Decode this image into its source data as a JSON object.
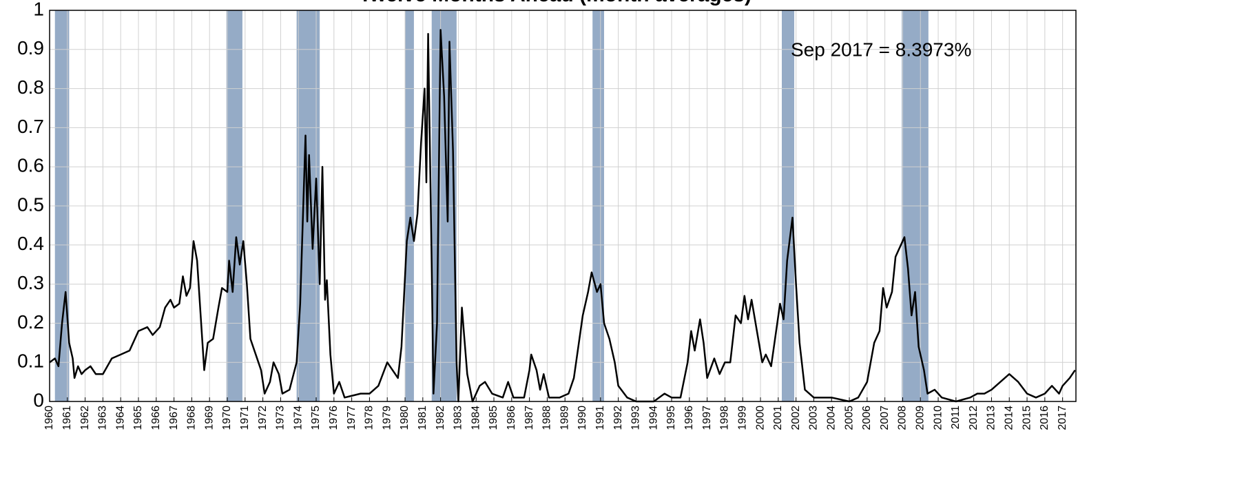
{
  "chart_data": {
    "type": "line",
    "title": "Twelve Months Ahead (month averages)",
    "annotation": "Sep 2017 = 8.3973%",
    "color": "#000000",
    "band_color": "#95abc6",
    "grid": true,
    "xlim": [
      1960,
      2017.75
    ],
    "ylim": [
      0,
      1
    ],
    "yticks": [
      0,
      0.1,
      0.2,
      0.3,
      0.4,
      0.5,
      0.6,
      0.7,
      0.8,
      0.9,
      1
    ],
    "xticks": [
      1960,
      1961,
      1962,
      1963,
      1964,
      1965,
      1966,
      1967,
      1968,
      1969,
      1970,
      1971,
      1972,
      1973,
      1974,
      1975,
      1976,
      1977,
      1978,
      1979,
      1980,
      1981,
      1982,
      1983,
      1984,
      1985,
      1986,
      1987,
      1988,
      1989,
      1990,
      1991,
      1992,
      1993,
      1994,
      1995,
      1996,
      1997,
      1998,
      1999,
      2000,
      2001,
      2002,
      2003,
      2004,
      2005,
      2006,
      2007,
      2008,
      2009,
      2010,
      2011,
      2012,
      2013,
      2014,
      2015,
      2016,
      2017
    ],
    "recessions": [
      [
        1960.3,
        1961.1
      ],
      [
        1969.95,
        1970.85
      ],
      [
        1973.9,
        1975.2
      ],
      [
        1980.0,
        1980.5
      ],
      [
        1981.5,
        1982.9
      ],
      [
        1990.55,
        1991.2
      ],
      [
        2001.2,
        2001.9
      ],
      [
        2007.95,
        2009.45
      ]
    ],
    "x": [
      1960.0,
      1960.3,
      1960.5,
      1960.7,
      1960.9,
      1961.1,
      1961.3,
      1961.4,
      1961.6,
      1961.8,
      1962.0,
      1962.3,
      1962.6,
      1963.0,
      1963.5,
      1964.0,
      1964.5,
      1965.0,
      1965.5,
      1965.8,
      1966.2,
      1966.5,
      1966.8,
      1967.0,
      1967.3,
      1967.5,
      1967.7,
      1967.9,
      1968.1,
      1968.3,
      1968.5,
      1968.7,
      1968.9,
      1969.2,
      1969.5,
      1969.7,
      1970.0,
      1970.1,
      1970.3,
      1970.5,
      1970.7,
      1970.9,
      1971.1,
      1971.3,
      1971.6,
      1971.9,
      1972.1,
      1972.4,
      1972.6,
      1972.9,
      1973.1,
      1973.5,
      1973.9,
      1974.1,
      1974.4,
      1974.5,
      1974.6,
      1974.8,
      1975.0,
      1975.2,
      1975.35,
      1975.5,
      1975.6,
      1975.8,
      1976.0,
      1976.3,
      1976.6,
      1977.5,
      1978.0,
      1978.5,
      1979.0,
      1979.3,
      1979.6,
      1979.8,
      1980.1,
      1980.3,
      1980.5,
      1980.7,
      1980.9,
      1981.1,
      1981.2,
      1981.3,
      1981.5,
      1981.6,
      1981.8,
      1982.0,
      1982.2,
      1982.4,
      1982.5,
      1982.7,
      1982.9,
      1983.0,
      1983.2,
      1983.5,
      1983.8,
      1984.2,
      1984.5,
      1984.9,
      1985.5,
      1985.8,
      1986.1,
      1986.7,
      1987.0,
      1987.1,
      1987.4,
      1987.6,
      1987.8,
      1988.1,
      1988.7,
      1989.2,
      1989.5,
      1990.0,
      1990.3,
      1990.5,
      1990.8,
      1991.0,
      1991.2,
      1991.5,
      1991.8,
      1992.0,
      1992.5,
      1993.0,
      1994.0,
      1994.6,
      1995.0,
      1995.5,
      1995.9,
      1996.1,
      1996.3,
      1996.6,
      1996.8,
      1997.0,
      1997.4,
      1997.7,
      1998.0,
      1998.3,
      1998.6,
      1998.9,
      1999.1,
      1999.3,
      1999.5,
      1999.8,
      2000.1,
      2000.3,
      2000.6,
      2001.1,
      2001.3,
      2001.5,
      2001.8,
      2002.0,
      2002.2,
      2002.5,
      2003.0,
      2003.5,
      2004.0,
      2005.0,
      2005.5,
      2006.0,
      2006.4,
      2006.7,
      2006.9,
      2007.1,
      2007.4,
      2007.6,
      2007.9,
      2008.1,
      2008.3,
      2008.5,
      2008.7,
      2008.9,
      2009.2,
      2009.4,
      2009.8,
      2010.2,
      2011.0,
      2011.8,
      2012.2,
      2012.6,
      2013.0,
      2013.5,
      2014.0,
      2014.5,
      2015.0,
      2015.5,
      2016.0,
      2016.4,
      2016.8,
      2017.0,
      2017.4,
      2017.7
    ],
    "values": [
      0.1,
      0.11,
      0.09,
      0.2,
      0.28,
      0.15,
      0.11,
      0.06,
      0.09,
      0.07,
      0.08,
      0.09,
      0.07,
      0.07,
      0.11,
      0.12,
      0.13,
      0.18,
      0.19,
      0.17,
      0.19,
      0.24,
      0.26,
      0.24,
      0.25,
      0.32,
      0.27,
      0.29,
      0.41,
      0.36,
      0.22,
      0.08,
      0.15,
      0.16,
      0.24,
      0.29,
      0.28,
      0.36,
      0.28,
      0.42,
      0.35,
      0.41,
      0.3,
      0.16,
      0.12,
      0.08,
      0.02,
      0.05,
      0.1,
      0.07,
      0.02,
      0.03,
      0.1,
      0.25,
      0.68,
      0.46,
      0.63,
      0.39,
      0.57,
      0.3,
      0.6,
      0.26,
      0.31,
      0.12,
      0.02,
      0.05,
      0.01,
      0.02,
      0.02,
      0.04,
      0.1,
      0.08,
      0.06,
      0.14,
      0.41,
      0.47,
      0.41,
      0.48,
      0.66,
      0.8,
      0.56,
      0.94,
      0.35,
      0.02,
      0.2,
      0.95,
      0.78,
      0.46,
      0.92,
      0.64,
      0.1,
      0.0,
      0.24,
      0.07,
      0.0,
      0.04,
      0.05,
      0.02,
      0.01,
      0.05,
      0.01,
      0.01,
      0.08,
      0.12,
      0.08,
      0.03,
      0.07,
      0.01,
      0.01,
      0.02,
      0.06,
      0.22,
      0.28,
      0.33,
      0.28,
      0.3,
      0.2,
      0.16,
      0.1,
      0.04,
      0.01,
      0.0,
      0.0,
      0.02,
      0.01,
      0.01,
      0.1,
      0.18,
      0.13,
      0.21,
      0.15,
      0.06,
      0.11,
      0.07,
      0.1,
      0.1,
      0.22,
      0.2,
      0.27,
      0.21,
      0.26,
      0.18,
      0.1,
      0.12,
      0.09,
      0.25,
      0.21,
      0.36,
      0.47,
      0.3,
      0.15,
      0.03,
      0.01,
      0.01,
      0.01,
      0.0,
      0.01,
      0.05,
      0.15,
      0.18,
      0.29,
      0.24,
      0.28,
      0.37,
      0.4,
      0.42,
      0.34,
      0.22,
      0.28,
      0.14,
      0.08,
      0.02,
      0.03,
      0.01,
      0.0,
      0.01,
      0.02,
      0.02,
      0.03,
      0.05,
      0.07,
      0.05,
      0.02,
      0.01,
      0.02,
      0.04,
      0.02,
      0.04,
      0.06,
      0.08
    ]
  }
}
